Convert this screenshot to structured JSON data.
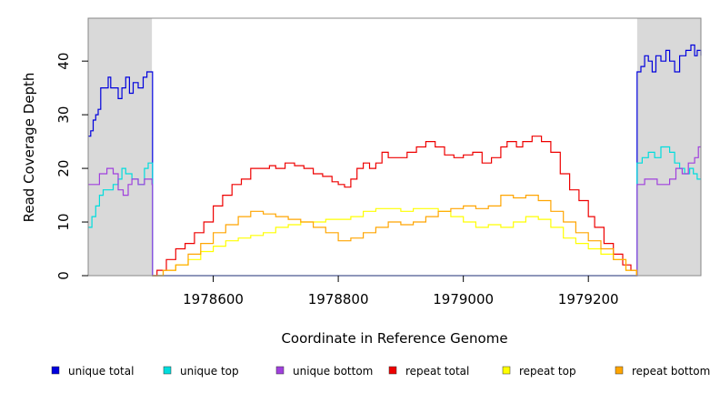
{
  "chart_data": {
    "type": "line",
    "title": "",
    "xlabel": "Coordinate in Reference Genome",
    "ylabel": "Read Coverage Depth",
    "xlim": [
      1978400,
      1979380
    ],
    "ylim": [
      0,
      48
    ],
    "x_ticks": [
      1978600,
      1978800,
      1979000,
      1979200
    ],
    "x_tick_labels": [
      "1978600",
      "1978800",
      "1979000",
      "1979200"
    ],
    "y_ticks": [
      0,
      10,
      20,
      30,
      40
    ],
    "y_tick_labels": [
      "0",
      "10",
      "20",
      "30",
      "40"
    ],
    "grid": false,
    "legend_position": "bottom",
    "shaded_regions": [
      {
        "x_start": 1978400,
        "x_end": 1978502,
        "color": "#d9d9d9"
      },
      {
        "x_start": 1979278,
        "x_end": 1979380,
        "color": "#d9d9d9"
      }
    ],
    "series": [
      {
        "name": "unique total",
        "color": "#0000dd",
        "points": [
          [
            1978400,
            26
          ],
          [
            1978404,
            27
          ],
          [
            1978408,
            29
          ],
          [
            1978412,
            30
          ],
          [
            1978416,
            31
          ],
          [
            1978420,
            35
          ],
          [
            1978432,
            37
          ],
          [
            1978436,
            35
          ],
          [
            1978448,
            33
          ],
          [
            1978454,
            35
          ],
          [
            1978460,
            37
          ],
          [
            1978466,
            34
          ],
          [
            1978472,
            36
          ],
          [
            1978480,
            35
          ],
          [
            1978488,
            37
          ],
          [
            1978494,
            38
          ],
          [
            1978502,
            38
          ],
          [
            1978503,
            0
          ],
          [
            1979277,
            0
          ],
          [
            1979278,
            38
          ],
          [
            1979284,
            39
          ],
          [
            1979290,
            41
          ],
          [
            1979296,
            40
          ],
          [
            1979302,
            38
          ],
          [
            1979308,
            41
          ],
          [
            1979316,
            40
          ],
          [
            1979324,
            42
          ],
          [
            1979330,
            40
          ],
          [
            1979338,
            38
          ],
          [
            1979346,
            41
          ],
          [
            1979356,
            42
          ],
          [
            1979364,
            43
          ],
          [
            1979370,
            41
          ],
          [
            1979374,
            42
          ],
          [
            1979380,
            41
          ]
        ]
      },
      {
        "name": "unique top",
        "color": "#00dddd",
        "points": [
          [
            1978400,
            9
          ],
          [
            1978406,
            11
          ],
          [
            1978412,
            13
          ],
          [
            1978418,
            15
          ],
          [
            1978424,
            16
          ],
          [
            1978440,
            17
          ],
          [
            1978448,
            18
          ],
          [
            1978454,
            20
          ],
          [
            1978460,
            19
          ],
          [
            1978470,
            18
          ],
          [
            1978480,
            17
          ],
          [
            1978490,
            20
          ],
          [
            1978496,
            21
          ],
          [
            1978502,
            21
          ],
          [
            1978503,
            0
          ],
          [
            1979277,
            0
          ],
          [
            1979278,
            21
          ],
          [
            1979286,
            22
          ],
          [
            1979296,
            23
          ],
          [
            1979306,
            22
          ],
          [
            1979316,
            24
          ],
          [
            1979330,
            23
          ],
          [
            1979338,
            21
          ],
          [
            1979346,
            20
          ],
          [
            1979354,
            19
          ],
          [
            1979362,
            20
          ],
          [
            1979368,
            19
          ],
          [
            1979374,
            18
          ],
          [
            1979380,
            18
          ]
        ]
      },
      {
        "name": "unique bottom",
        "color": "#a040dd",
        "points": [
          [
            1978400,
            17
          ],
          [
            1978418,
            19
          ],
          [
            1978430,
            20
          ],
          [
            1978440,
            19
          ],
          [
            1978448,
            16
          ],
          [
            1978456,
            15
          ],
          [
            1978464,
            17
          ],
          [
            1978470,
            18
          ],
          [
            1978480,
            17
          ],
          [
            1978490,
            18
          ],
          [
            1978502,
            17
          ],
          [
            1978503,
            0
          ],
          [
            1979277,
            0
          ],
          [
            1979278,
            17
          ],
          [
            1979290,
            18
          ],
          [
            1979310,
            17
          ],
          [
            1979330,
            18
          ],
          [
            1979340,
            20
          ],
          [
            1979350,
            19
          ],
          [
            1979360,
            21
          ],
          [
            1979370,
            22
          ],
          [
            1979376,
            24
          ],
          [
            1979380,
            24
          ]
        ]
      },
      {
        "name": "repeat total",
        "color": "#ee0000",
        "points": [
          [
            1978503,
            0
          ],
          [
            1978510,
            1
          ],
          [
            1978525,
            3
          ],
          [
            1978540,
            5
          ],
          [
            1978555,
            6
          ],
          [
            1978570,
            8
          ],
          [
            1978585,
            10
          ],
          [
            1978600,
            13
          ],
          [
            1978615,
            15
          ],
          [
            1978630,
            17
          ],
          [
            1978645,
            18
          ],
          [
            1978660,
            20
          ],
          [
            1978675,
            20
          ],
          [
            1978690,
            20.5
          ],
          [
            1978700,
            20
          ],
          [
            1978715,
            21
          ],
          [
            1978730,
            20.5
          ],
          [
            1978745,
            20
          ],
          [
            1978760,
            19
          ],
          [
            1978775,
            18.5
          ],
          [
            1978790,
            17.5
          ],
          [
            1978800,
            17
          ],
          [
            1978810,
            16.5
          ],
          [
            1978820,
            18
          ],
          [
            1978830,
            20
          ],
          [
            1978840,
            21
          ],
          [
            1978850,
            20
          ],
          [
            1978860,
            21
          ],
          [
            1978870,
            23
          ],
          [
            1978880,
            22
          ],
          [
            1978895,
            22
          ],
          [
            1978910,
            23
          ],
          [
            1978925,
            24
          ],
          [
            1978940,
            25
          ],
          [
            1978955,
            24
          ],
          [
            1978970,
            22.5
          ],
          [
            1978985,
            22
          ],
          [
            1979000,
            22.5
          ],
          [
            1979015,
            23
          ],
          [
            1979030,
            21
          ],
          [
            1979045,
            22
          ],
          [
            1979060,
            24
          ],
          [
            1979070,
            25
          ],
          [
            1979085,
            24
          ],
          [
            1979095,
            25
          ],
          [
            1979110,
            26
          ],
          [
            1979125,
            25
          ],
          [
            1979140,
            23
          ],
          [
            1979155,
            19
          ],
          [
            1979170,
            16
          ],
          [
            1979185,
            14
          ],
          [
            1979200,
            11
          ],
          [
            1979210,
            9
          ],
          [
            1979225,
            6
          ],
          [
            1979240,
            4
          ],
          [
            1979255,
            2
          ],
          [
            1979268,
            1
          ],
          [
            1979277,
            0
          ]
        ]
      },
      {
        "name": "repeat top",
        "color": "#ffff00",
        "points": [
          [
            1978503,
            0
          ],
          [
            1978520,
            1
          ],
          [
            1978540,
            2
          ],
          [
            1978560,
            3
          ],
          [
            1978580,
            4.5
          ],
          [
            1978600,
            5.5
          ],
          [
            1978620,
            6.5
          ],
          [
            1978640,
            7
          ],
          [
            1978660,
            7.5
          ],
          [
            1978680,
            8
          ],
          [
            1978700,
            9
          ],
          [
            1978720,
            9.5
          ],
          [
            1978740,
            10
          ],
          [
            1978760,
            10
          ],
          [
            1978780,
            10.5
          ],
          [
            1978800,
            10.5
          ],
          [
            1978820,
            11
          ],
          [
            1978840,
            12
          ],
          [
            1978860,
            12.5
          ],
          [
            1978880,
            12.5
          ],
          [
            1978900,
            12
          ],
          [
            1978920,
            12.5
          ],
          [
            1978940,
            12.5
          ],
          [
            1978960,
            12
          ],
          [
            1978980,
            11
          ],
          [
            1979000,
            10
          ],
          [
            1979020,
            9
          ],
          [
            1979040,
            9.5
          ],
          [
            1979060,
            9
          ],
          [
            1979080,
            10
          ],
          [
            1979100,
            11
          ],
          [
            1979120,
            10.5
          ],
          [
            1979140,
            9
          ],
          [
            1979160,
            7
          ],
          [
            1979180,
            6
          ],
          [
            1979200,
            5
          ],
          [
            1979220,
            4
          ],
          [
            1979240,
            3
          ],
          [
            1979260,
            1
          ],
          [
            1979277,
            0
          ]
        ]
      },
      {
        "name": "repeat bottom",
        "color": "#ffa500",
        "points": [
          [
            1978503,
            0
          ],
          [
            1978520,
            1
          ],
          [
            1978540,
            2
          ],
          [
            1978560,
            4
          ],
          [
            1978580,
            6
          ],
          [
            1978600,
            8
          ],
          [
            1978620,
            9.5
          ],
          [
            1978640,
            11
          ],
          [
            1978660,
            12
          ],
          [
            1978680,
            11.5
          ],
          [
            1978700,
            11
          ],
          [
            1978720,
            10.5
          ],
          [
            1978740,
            10
          ],
          [
            1978760,
            9
          ],
          [
            1978780,
            8
          ],
          [
            1978800,
            6.5
          ],
          [
            1978820,
            7
          ],
          [
            1978840,
            8
          ],
          [
            1978860,
            9
          ],
          [
            1978880,
            10
          ],
          [
            1978900,
            9.5
          ],
          [
            1978920,
            10
          ],
          [
            1978940,
            11
          ],
          [
            1978960,
            12
          ],
          [
            1978980,
            12.5
          ],
          [
            1979000,
            13
          ],
          [
            1979020,
            12.5
          ],
          [
            1979040,
            13
          ],
          [
            1979060,
            15
          ],
          [
            1979080,
            14.5
          ],
          [
            1979100,
            15
          ],
          [
            1979120,
            14
          ],
          [
            1979140,
            12
          ],
          [
            1979160,
            10
          ],
          [
            1979180,
            8
          ],
          [
            1979200,
            6.5
          ],
          [
            1979220,
            5
          ],
          [
            1979240,
            3
          ],
          [
            1979260,
            1
          ],
          [
            1979277,
            0
          ]
        ]
      }
    ]
  }
}
